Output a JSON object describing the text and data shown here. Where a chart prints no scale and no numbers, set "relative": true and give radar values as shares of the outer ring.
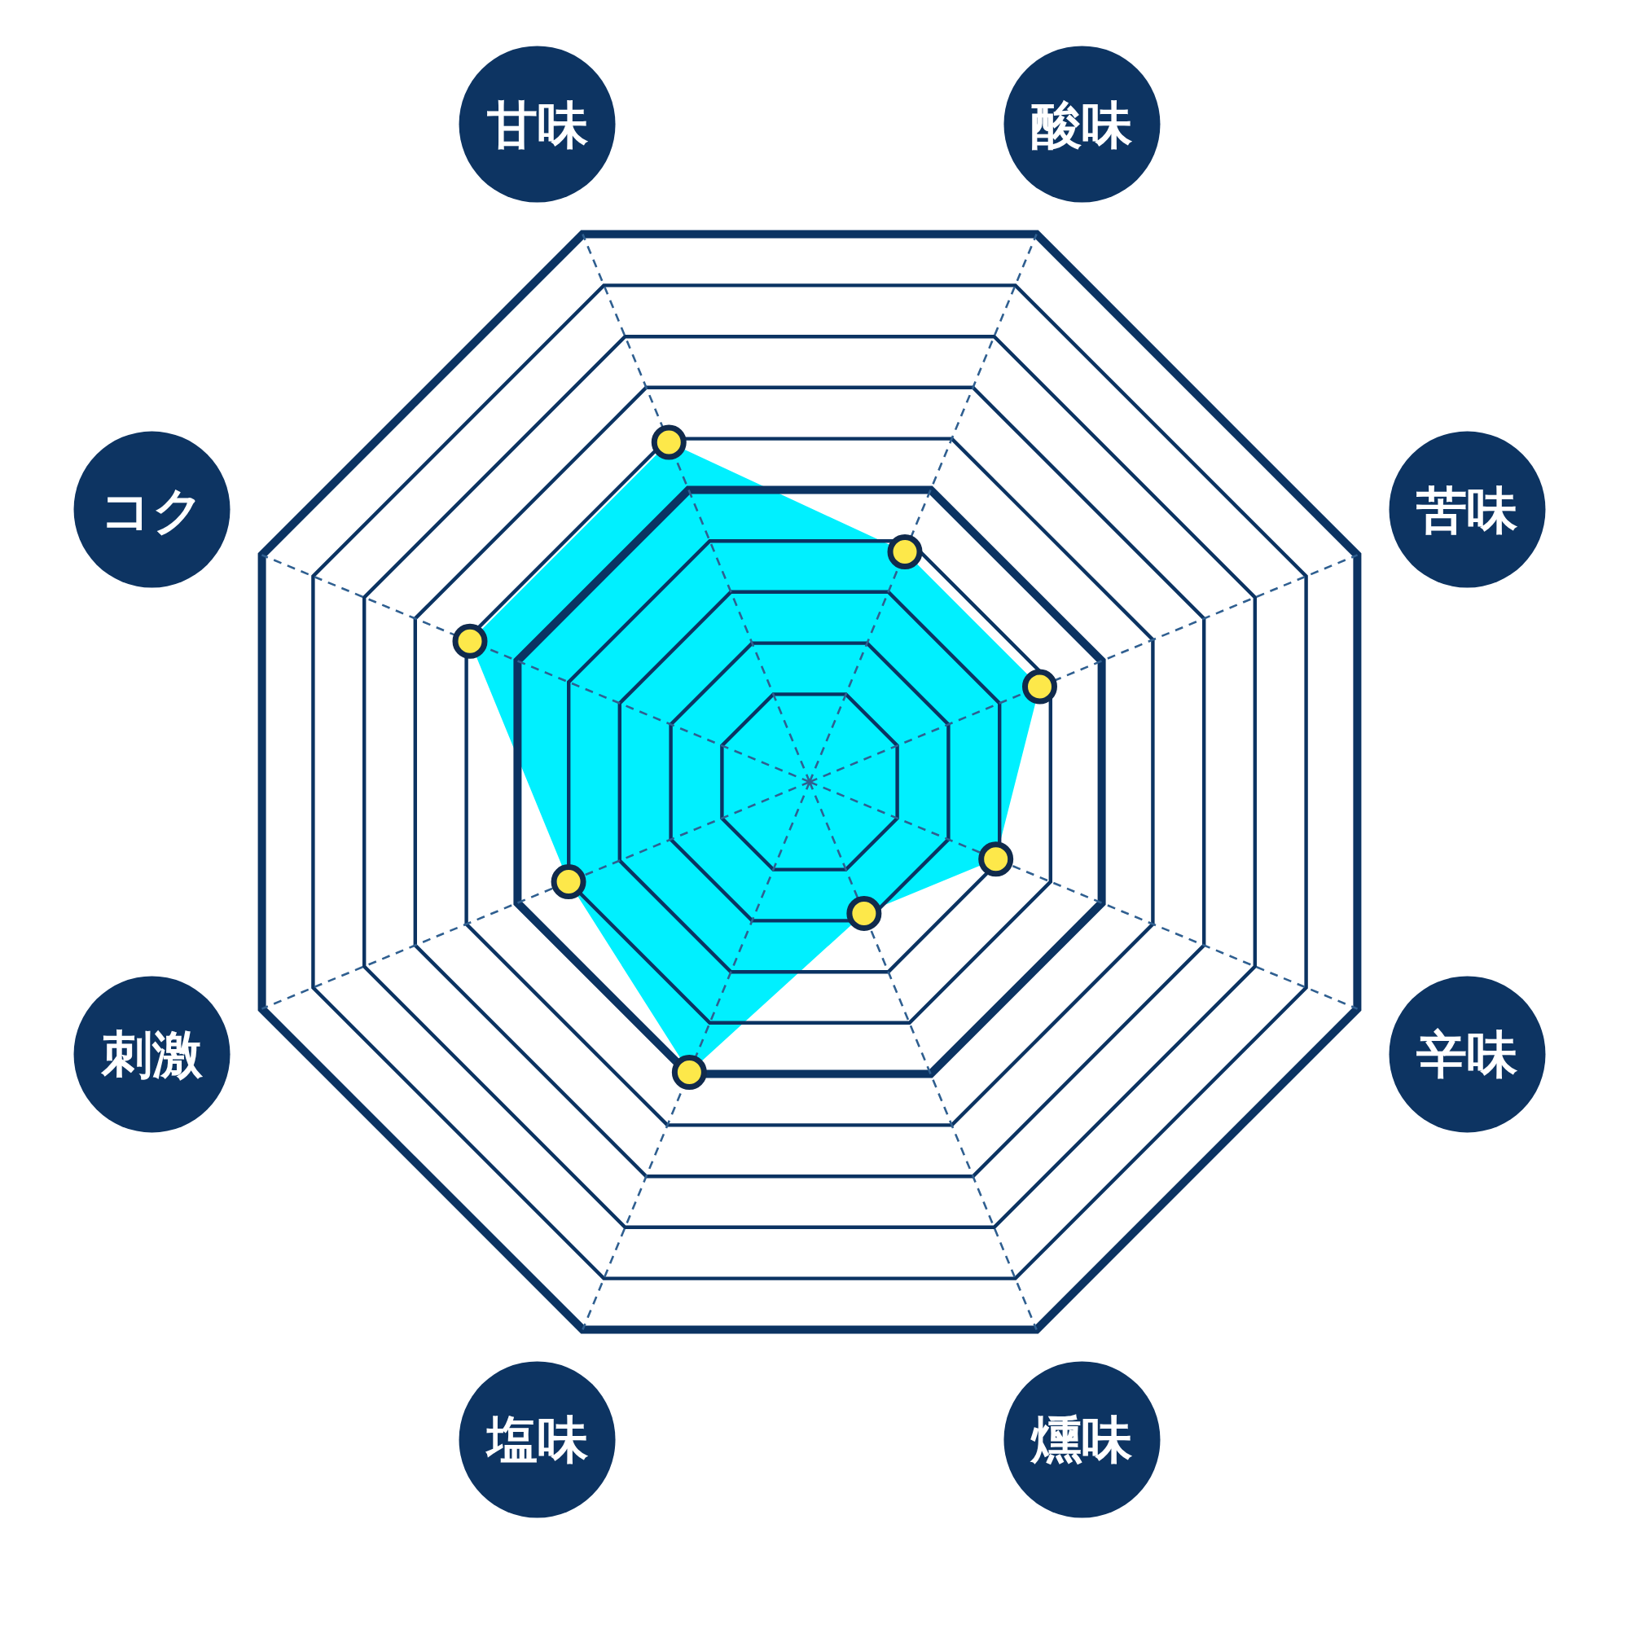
{
  "chart_data": {
    "type": "radar",
    "relative": true,
    "categories": [
      "甘味",
      "酸味",
      "苦味",
      "辛味",
      "燻味",
      "塩味",
      "刺激",
      "コク"
    ],
    "series": [
      {
        "color": "#00f0ff",
        "values": [
          0.62,
          0.42,
          0.42,
          0.34,
          0.24,
          0.53,
          0.44,
          0.62
        ]
      }
    ],
    "marker": "circle",
    "grid": true
  }
}
